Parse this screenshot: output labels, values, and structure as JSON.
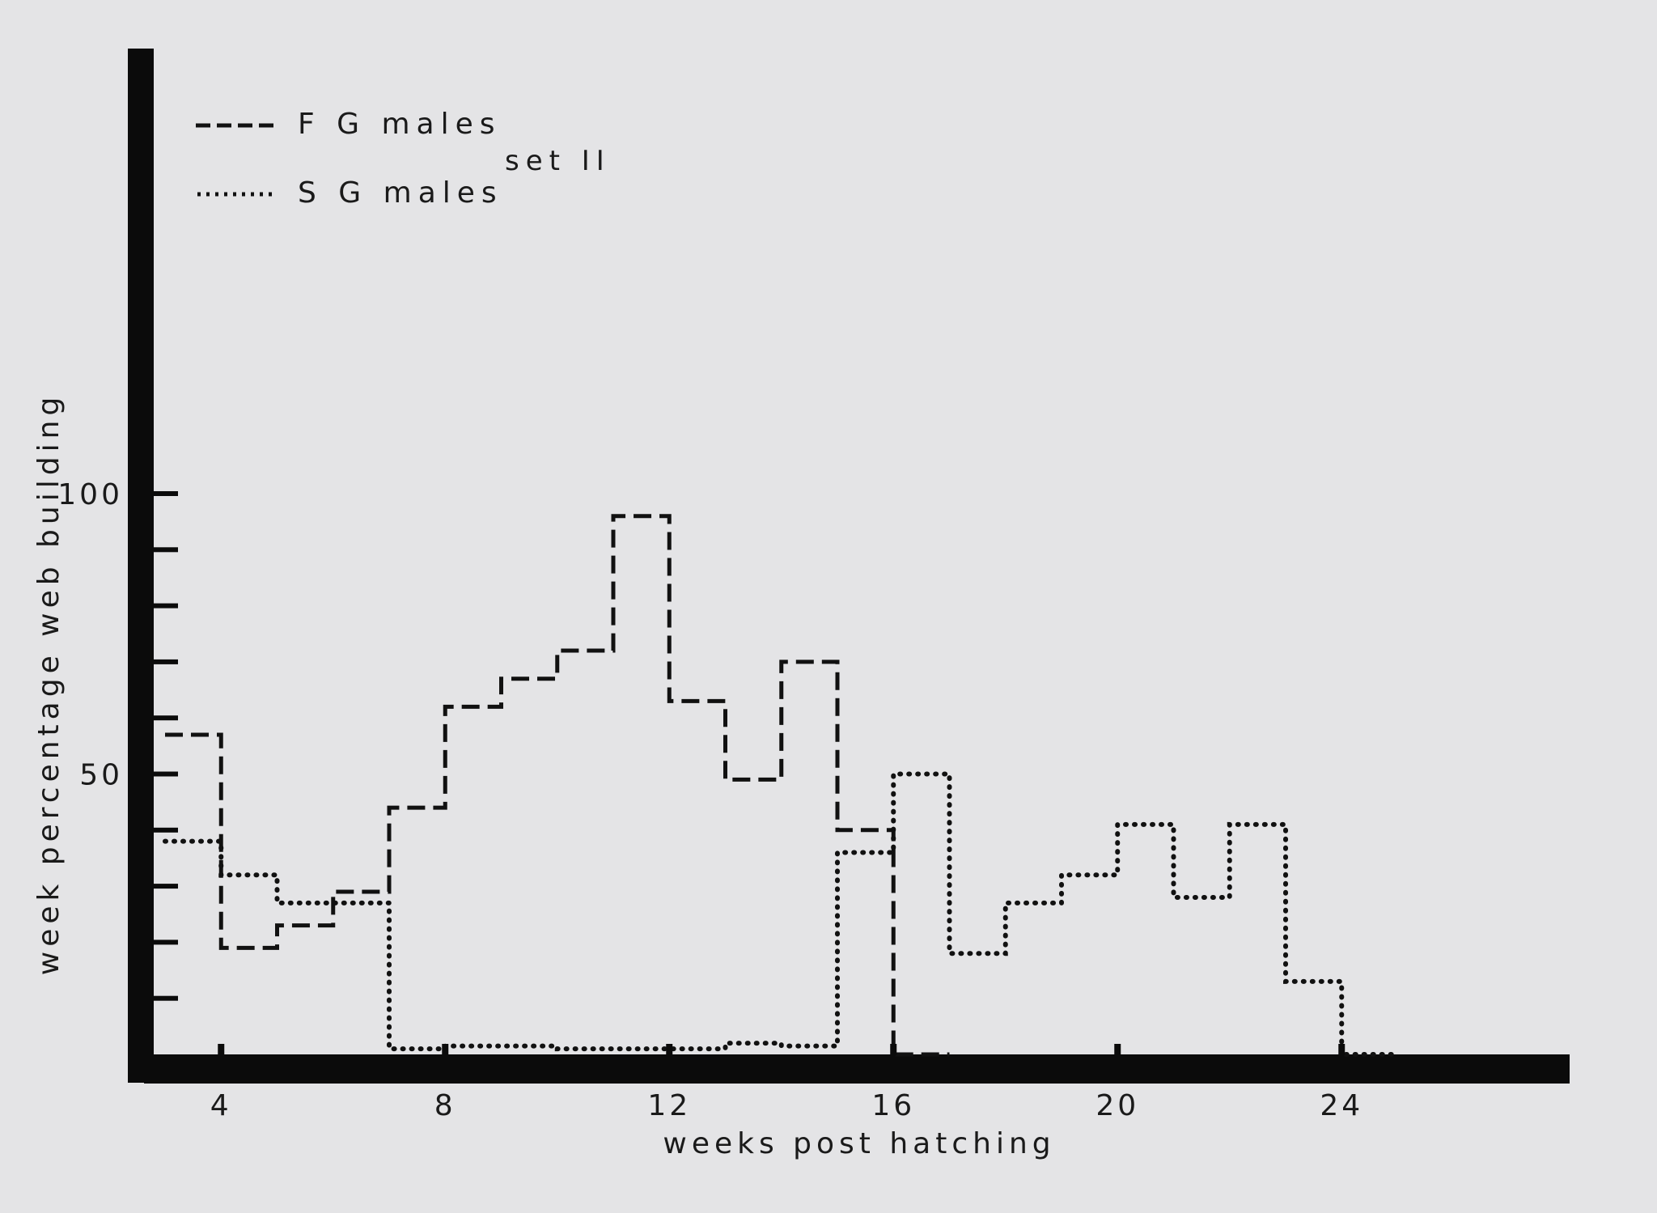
{
  "chart_data": {
    "type": "line",
    "subtype": "step",
    "annotation": "set II",
    "xlabel": "weeks post hatching",
    "ylabel": "week percentage web building",
    "xlim": [
      3,
      28
    ],
    "ylim": [
      0,
      105
    ],
    "xticks": [
      4,
      8,
      12,
      16,
      20,
      24
    ],
    "yticks": [
      50,
      100
    ],
    "legend_position": "top-left",
    "grid": false,
    "series": [
      {
        "name": "F G males",
        "style": "dashed",
        "bins": [
          {
            "x0": 3,
            "x1": 4,
            "y": 57
          },
          {
            "x0": 4,
            "x1": 5,
            "y": 19
          },
          {
            "x0": 5,
            "x1": 6,
            "y": 23
          },
          {
            "x0": 6,
            "x1": 7,
            "y": 29
          },
          {
            "x0": 7,
            "x1": 8,
            "y": 44
          },
          {
            "x0": 8,
            "x1": 9,
            "y": 62
          },
          {
            "x0": 9,
            "x1": 10,
            "y": 67
          },
          {
            "x0": 10,
            "x1": 11,
            "y": 72
          },
          {
            "x0": 11,
            "x1": 12,
            "y": 96
          },
          {
            "x0": 12,
            "x1": 13,
            "y": 63
          },
          {
            "x0": 13,
            "x1": 14,
            "y": 49
          },
          {
            "x0": 14,
            "x1": 15,
            "y": 70
          },
          {
            "x0": 15,
            "x1": 16,
            "y": 40
          },
          {
            "x0": 16,
            "x1": 17,
            "y": 0
          }
        ]
      },
      {
        "name": "S G males",
        "style": "dotted",
        "bins": [
          {
            "x0": 3,
            "x1": 4,
            "y": 38
          },
          {
            "x0": 4,
            "x1": 5,
            "y": 32
          },
          {
            "x0": 5,
            "x1": 6,
            "y": 27
          },
          {
            "x0": 6,
            "x1": 7,
            "y": 27
          },
          {
            "x0": 7,
            "x1": 8,
            "y": 1
          },
          {
            "x0": 8,
            "x1": 9,
            "y": 1.5
          },
          {
            "x0": 9,
            "x1": 10,
            "y": 1.5
          },
          {
            "x0": 10,
            "x1": 11,
            "y": 1
          },
          {
            "x0": 11,
            "x1": 12,
            "y": 1
          },
          {
            "x0": 12,
            "x1": 13,
            "y": 1
          },
          {
            "x0": 13,
            "x1": 14,
            "y": 2
          },
          {
            "x0": 14,
            "x1": 15,
            "y": 1.5
          },
          {
            "x0": 15,
            "x1": 16,
            "y": 36
          },
          {
            "x0": 16,
            "x1": 17,
            "y": 50
          },
          {
            "x0": 17,
            "x1": 18,
            "y": 18
          },
          {
            "x0": 18,
            "x1": 19,
            "y": 27
          },
          {
            "x0": 19,
            "x1": 20,
            "y": 32
          },
          {
            "x0": 20,
            "x1": 21,
            "y": 41
          },
          {
            "x0": 21,
            "x1": 22,
            "y": 28
          },
          {
            "x0": 22,
            "x1": 23,
            "y": 41
          },
          {
            "x0": 23,
            "x1": 24,
            "y": 13
          },
          {
            "x0": 24,
            "x1": 25,
            "y": 0
          }
        ]
      }
    ]
  }
}
